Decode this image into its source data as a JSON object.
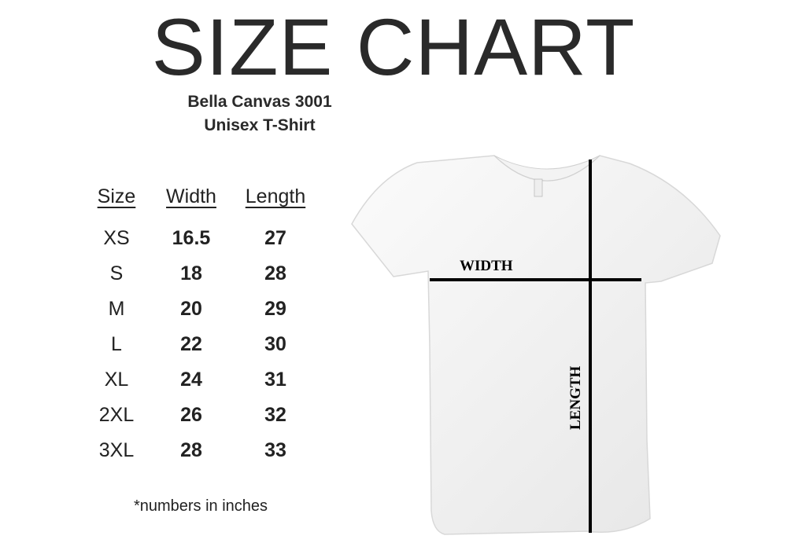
{
  "title": "SIZE CHART",
  "subtitle": {
    "line1": "Bella Canvas 3001",
    "line2": "Unisex T-Shirt"
  },
  "table": {
    "headers": [
      "Size",
      "Width",
      "Length"
    ],
    "rows": [
      {
        "size": "XS",
        "width": "16.5",
        "length": "27"
      },
      {
        "size": "S",
        "width": "18",
        "length": "28"
      },
      {
        "size": "M",
        "width": "20",
        "length": "29"
      },
      {
        "size": "L",
        "width": "22",
        "length": "30"
      },
      {
        "size": "XL",
        "width": "24",
        "length": "31"
      },
      {
        "size": "2XL",
        "width": "26",
        "length": "32"
      },
      {
        "size": "3XL",
        "width": "28",
        "length": "33"
      }
    ]
  },
  "footnote": "*numbers in inches",
  "diagram": {
    "width_label": "WIDTH",
    "length_label": "LENGTH",
    "shirt_color": "#ffffff",
    "line_color": "#000000"
  }
}
